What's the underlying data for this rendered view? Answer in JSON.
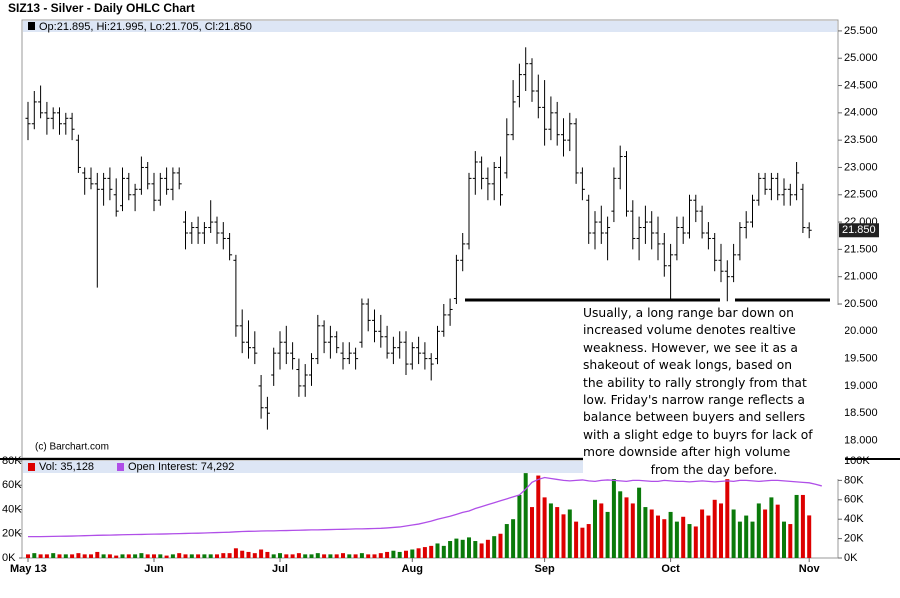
{
  "chart_data": {
    "type": "ohlc",
    "title": "SIZ13 - Silver - Daily OHLC Chart",
    "ohlc_legend": "Op:21.895, Hi:21.995, Lo:21.705, Cl:21.850",
    "price_label": "21.850",
    "copyright": "(c) Barchart.com",
    "ylim": [
      17.68,
      25.7
    ],
    "yticks": [
      {
        "value": 18,
        "label": "18.000"
      },
      {
        "value": 18.5,
        "label": "18.500"
      },
      {
        "value": 19,
        "label": "19.000"
      },
      {
        "value": 19.5,
        "label": "19.500"
      },
      {
        "value": 20,
        "label": "20.000"
      },
      {
        "value": 20.5,
        "label": "20.500"
      },
      {
        "value": 21,
        "label": "21.000"
      },
      {
        "value": 21.5,
        "label": "21.500"
      },
      {
        "value": 22,
        "label": "22.000"
      },
      {
        "value": 22.5,
        "label": "22.500"
      },
      {
        "value": 23,
        "label": "23.000"
      },
      {
        "value": 23.5,
        "label": "23.500"
      },
      {
        "value": 24,
        "label": "24.000"
      },
      {
        "value": 24.5,
        "label": "24.500"
      },
      {
        "value": 25,
        "label": "25.000"
      },
      {
        "value": 25.5,
        "label": "25.500"
      }
    ],
    "xticks": [
      {
        "value": 0,
        "label": "May 13"
      },
      {
        "value": 20,
        "label": "Jun"
      },
      {
        "value": 40,
        "label": "Jul"
      },
      {
        "value": 61,
        "label": "Aug"
      },
      {
        "value": 82,
        "label": "Sep"
      },
      {
        "value": 102,
        "label": "Oct"
      },
      {
        "value": 124,
        "label": "Nov"
      }
    ],
    "bar_color": "#000000",
    "ohlc": [
      [
        23.9,
        24.2,
        23.5,
        23.8
      ],
      [
        23.8,
        24.4,
        23.7,
        24.2
      ],
      [
        24.2,
        24.5,
        23.9,
        24.0
      ],
      [
        24.0,
        24.2,
        23.6,
        23.9
      ],
      [
        23.9,
        24.1,
        23.7,
        24.0
      ],
      [
        24.0,
        24.1,
        23.6,
        23.8
      ],
      [
        23.8,
        24.0,
        23.6,
        23.9
      ],
      [
        23.9,
        24.0,
        23.5,
        23.7
      ],
      [
        23.5,
        23.6,
        22.9,
        23.0
      ],
      [
        22.9,
        23.0,
        22.5,
        22.8
      ],
      [
        22.8,
        23.0,
        22.6,
        22.7
      ],
      [
        22.7,
        22.9,
        20.8,
        22.6
      ],
      [
        22.6,
        22.9,
        22.3,
        22.8
      ],
      [
        22.8,
        23.0,
        22.4,
        22.6
      ],
      [
        22.5,
        22.8,
        22.1,
        22.2
      ],
      [
        22.3,
        23.0,
        22.2,
        22.8
      ],
      [
        22.8,
        22.9,
        22.4,
        22.5
      ],
      [
        22.5,
        22.7,
        22.2,
        22.6
      ],
      [
        22.6,
        23.2,
        22.5,
        23.0
      ],
      [
        23.0,
        23.1,
        22.6,
        22.7
      ],
      [
        22.7,
        22.9,
        22.2,
        22.4
      ],
      [
        22.4,
        22.9,
        22.3,
        22.8
      ],
      [
        22.8,
        23.0,
        22.5,
        22.6
      ],
      [
        22.6,
        23.0,
        22.4,
        22.9
      ],
      [
        22.9,
        23.0,
        22.6,
        22.7
      ],
      [
        22.0,
        22.2,
        21.5,
        21.8
      ],
      [
        21.8,
        22.0,
        21.6,
        21.9
      ],
      [
        21.9,
        22.1,
        21.6,
        21.8
      ],
      [
        21.8,
        22.0,
        21.6,
        21.9
      ],
      [
        21.9,
        22.4,
        21.8,
        22.0
      ],
      [
        22.0,
        22.1,
        21.6,
        21.8
      ],
      [
        21.8,
        22.0,
        21.5,
        21.7
      ],
      [
        21.7,
        21.8,
        21.3,
        21.4
      ],
      [
        21.3,
        21.4,
        19.9,
        20.1
      ],
      [
        20.1,
        20.4,
        19.6,
        19.8
      ],
      [
        19.8,
        20.2,
        19.5,
        19.7
      ],
      [
        19.7,
        20.0,
        19.4,
        19.6
      ],
      [
        19.0,
        19.2,
        18.4,
        18.6
      ],
      [
        18.6,
        18.8,
        18.2,
        18.5
      ],
      [
        19.2,
        19.7,
        19.0,
        19.6
      ],
      [
        19.6,
        20.0,
        19.3,
        19.8
      ],
      [
        19.8,
        20.1,
        19.4,
        19.6
      ],
      [
        19.6,
        19.8,
        19.3,
        19.5
      ],
      [
        19.3,
        19.5,
        18.8,
        19.0
      ],
      [
        19.0,
        19.4,
        18.8,
        19.2
      ],
      [
        19.2,
        19.6,
        19.0,
        19.5
      ],
      [
        19.5,
        20.3,
        19.4,
        20.1
      ],
      [
        20.1,
        20.2,
        19.6,
        19.8
      ],
      [
        19.8,
        20.1,
        19.5,
        19.9
      ],
      [
        19.9,
        20.0,
        19.6,
        19.7
      ],
      [
        19.6,
        19.8,
        19.3,
        19.5
      ],
      [
        19.5,
        19.8,
        19.4,
        19.6
      ],
      [
        19.6,
        19.7,
        19.3,
        19.5
      ],
      [
        19.8,
        20.6,
        19.7,
        20.5
      ],
      [
        20.5,
        20.6,
        20.0,
        20.2
      ],
      [
        20.2,
        20.4,
        19.8,
        20.0
      ],
      [
        20.0,
        20.3,
        19.7,
        19.9
      ],
      [
        19.9,
        20.1,
        19.5,
        19.6
      ],
      [
        19.6,
        19.9,
        19.4,
        19.7
      ],
      [
        19.7,
        20.0,
        19.5,
        19.8
      ],
      [
        19.8,
        20.0,
        19.2,
        19.4
      ],
      [
        19.4,
        19.8,
        19.3,
        19.7
      ],
      [
        19.7,
        19.9,
        19.4,
        19.6
      ],
      [
        19.6,
        19.8,
        19.3,
        19.5
      ],
      [
        19.5,
        19.6,
        19.1,
        19.4
      ],
      [
        19.5,
        20.1,
        19.4,
        20.0
      ],
      [
        20.0,
        20.5,
        19.9,
        20.3
      ],
      [
        20.3,
        20.6,
        20.1,
        20.4
      ],
      [
        20.6,
        21.4,
        20.5,
        21.3
      ],
      [
        21.3,
        21.8,
        21.1,
        21.6
      ],
      [
        21.6,
        22.9,
        21.5,
        22.8
      ],
      [
        22.8,
        23.3,
        22.5,
        23.1
      ],
      [
        23.1,
        23.2,
        22.6,
        22.8
      ],
      [
        22.8,
        23.0,
        22.4,
        22.7
      ],
      [
        22.7,
        23.1,
        22.4,
        23.0
      ],
      [
        23.0,
        23.2,
        22.3,
        22.5
      ],
      [
        22.9,
        23.9,
        22.8,
        23.6
      ],
      [
        23.6,
        24.6,
        23.5,
        24.2
      ],
      [
        24.3,
        24.9,
        24.1,
        24.7
      ],
      [
        24.7,
        25.2,
        24.4,
        24.9
      ],
      [
        24.9,
        25.0,
        24.2,
        24.4
      ],
      [
        24.4,
        24.7,
        23.9,
        24.1
      ],
      [
        24.1,
        24.6,
        23.4,
        23.7
      ],
      [
        23.7,
        24.3,
        23.5,
        24.0
      ],
      [
        24.0,
        24.2,
        23.4,
        23.6
      ],
      [
        23.6,
        23.9,
        23.2,
        23.5
      ],
      [
        23.5,
        24.0,
        23.3,
        23.8
      ],
      [
        23.8,
        23.9,
        22.7,
        22.9
      ],
      [
        22.9,
        23.0,
        22.4,
        22.6
      ],
      [
        22.4,
        22.5,
        21.6,
        21.8
      ],
      [
        21.8,
        22.2,
        21.5,
        22.0
      ],
      [
        22.0,
        22.3,
        21.6,
        21.8
      ],
      [
        21.8,
        22.1,
        21.3,
        21.9
      ],
      [
        22.2,
        23.0,
        22.0,
        22.8
      ],
      [
        22.8,
        23.4,
        22.6,
        23.2
      ],
      [
        23.2,
        23.3,
        22.1,
        22.2
      ],
      [
        22.2,
        22.4,
        21.5,
        21.7
      ],
      [
        21.7,
        22.1,
        21.3,
        21.9
      ],
      [
        21.9,
        22.3,
        21.6,
        22.0
      ],
      [
        22.0,
        22.2,
        21.5,
        21.8
      ],
      [
        21.8,
        22.1,
        21.3,
        21.6
      ],
      [
        21.6,
        21.8,
        21.0,
        21.2
      ],
      [
        21.2,
        21.6,
        20.6,
        21.4
      ],
      [
        21.4,
        22.1,
        21.3,
        21.9
      ],
      [
        21.9,
        22.1,
        21.6,
        21.8
      ],
      [
        21.8,
        22.5,
        21.7,
        22.4
      ],
      [
        22.4,
        22.5,
        22.0,
        22.2
      ],
      [
        22.2,
        22.3,
        21.7,
        21.8
      ],
      [
        21.8,
        22.0,
        21.5,
        21.7
      ],
      [
        21.7,
        21.8,
        21.1,
        21.3
      ],
      [
        21.3,
        21.6,
        20.9,
        21.1
      ],
      [
        21.1,
        21.3,
        20.55,
        21.0
      ],
      [
        21.0,
        21.6,
        20.9,
        21.4
      ],
      [
        21.4,
        22.0,
        21.3,
        21.9
      ],
      [
        21.9,
        22.2,
        21.7,
        22.0
      ],
      [
        22.0,
        22.5,
        21.9,
        22.4
      ],
      [
        22.4,
        22.9,
        22.3,
        22.8
      ],
      [
        22.8,
        22.9,
        22.5,
        22.6
      ],
      [
        22.6,
        22.9,
        22.4,
        22.8
      ],
      [
        22.8,
        22.9,
        22.4,
        22.5
      ],
      [
        22.5,
        22.8,
        22.3,
        22.6
      ],
      [
        22.6,
        22.7,
        22.3,
        22.5
      ],
      [
        22.5,
        23.1,
        22.4,
        22.9
      ],
      [
        22.6,
        22.7,
        21.8,
        21.9
      ],
      [
        21.895,
        21.995,
        21.705,
        21.85
      ]
    ],
    "volume_legend": "Vol: 35,128",
    "oi_legend": "Open Interest: 74,292",
    "up_color": "#0a7a0a",
    "down_color": "#dd0000",
    "oi_color": "#b04fe8",
    "volume": [
      3,
      4,
      3,
      3,
      4,
      3,
      3,
      3,
      4,
      3,
      3,
      5,
      3,
      3,
      2,
      3,
      3,
      3,
      4,
      3,
      3,
      3,
      2,
      3,
      4,
      3,
      3,
      3,
      3,
      3,
      3,
      4,
      4,
      8,
      6,
      5,
      4,
      7,
      5,
      3,
      4,
      3,
      3,
      4,
      3,
      3,
      4,
      3,
      3,
      3,
      4,
      3,
      3,
      4,
      3,
      3,
      4,
      5,
      6,
      5,
      6,
      7,
      8,
      9,
      10,
      12,
      10,
      14,
      16,
      15,
      17,
      14,
      12,
      15,
      18,
      20,
      28,
      32,
      52,
      70,
      42,
      68,
      50,
      45,
      42,
      36,
      40,
      30,
      25,
      28,
      48,
      45,
      38,
      68,
      55,
      50,
      45,
      58,
      42,
      40,
      35,
      32,
      38,
      30,
      34,
      28,
      26,
      40,
      35,
      48,
      45,
      65,
      40,
      30,
      35,
      30,
      45,
      40,
      50,
      44,
      30,
      28,
      52,
      52,
      35.128
    ],
    "open_interest": [
      22,
      22,
      22,
      22.2,
      22.3,
      22.4,
      22.5,
      22.6,
      22.8,
      23,
      23.2,
      23.4,
      23.5,
      23.6,
      23.8,
      24,
      24.1,
      24.2,
      24.3,
      24.5,
      24.6,
      24.7,
      24.8,
      25,
      25.1,
      25.3,
      25.5,
      25.6,
      25.8,
      26,
      26.2,
      26.4,
      26.6,
      27,
      27.3,
      27.5,
      27.6,
      27.8,
      28,
      28,
      28.2,
      28.3,
      28.5,
      28.6,
      28.8,
      29,
      29,
      29.2,
      29.3,
      29.5,
      29.6,
      29.8,
      30,
      30,
      30.2,
      30.4,
      30.6,
      31,
      31.5,
      32,
      33,
      34,
      35,
      36.5,
      38,
      40,
      41.5,
      43,
      45,
      47,
      48.5,
      51,
      53,
      55,
      57,
      59,
      61,
      63,
      65,
      71,
      78,
      81,
      83,
      82,
      81,
      80,
      79.5,
      80,
      80.5,
      79.5,
      79,
      80,
      80.5,
      80,
      79.5,
      79,
      80,
      80,
      79.5,
      79,
      79,
      80,
      79.5,
      79,
      79,
      78.5,
      79,
      79.5,
      79,
      78.5,
      79,
      79.5,
      79,
      80,
      80,
      79.5,
      79,
      79.5,
      80,
      80,
      79.5,
      79,
      78.5,
      78,
      77.5,
      76,
      74.292
    ],
    "vol_ylim": [
      0,
      80
    ],
    "vol_yticks": [
      {
        "value": 0,
        "label": "0K"
      },
      {
        "value": 20,
        "label": "20K"
      },
      {
        "value": 40,
        "label": "40K"
      },
      {
        "value": 60,
        "label": "60K"
      },
      {
        "value": 80,
        "label": "80K"
      }
    ],
    "oi_ylim": [
      0,
      100
    ],
    "oi_yticks": [
      {
        "value": 0,
        "label": "0K"
      },
      {
        "value": 20,
        "label": "20K"
      },
      {
        "value": 40,
        "label": "40K"
      },
      {
        "value": 60,
        "label": "60K"
      },
      {
        "value": 80,
        "label": "80K"
      },
      {
        "value": 100,
        "label": "100K"
      }
    ],
    "annotation": [
      "Usually, a long range bar down on",
      "increased volume denotes realtive",
      "weakness.  However, we see it as a",
      "shakeout of weak longs, based on",
      "the ability to rally strongly from that",
      "low.  Friday's narrow range reflects a",
      "balance between buyers and sellers",
      "with a slight edge to buyrs for lack of",
      "more downside after high volume",
      "from the day before."
    ]
  }
}
